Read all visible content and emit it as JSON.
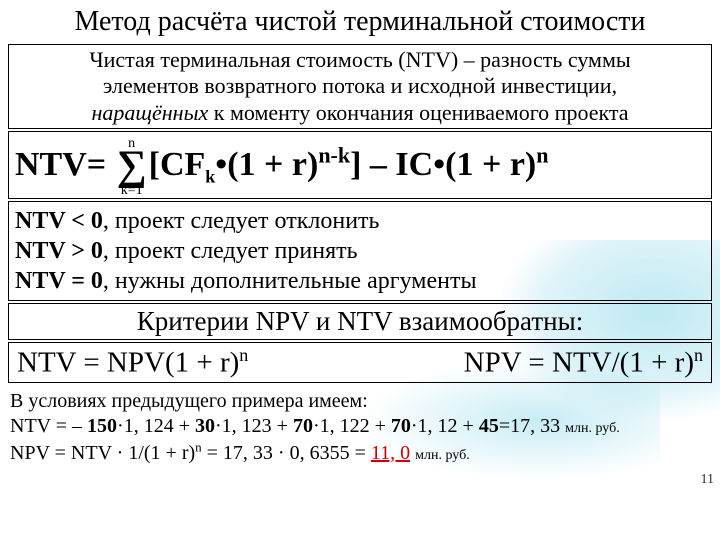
{
  "title": "Метод расчёта чистой терминальной стоимости",
  "definition": {
    "l1": "Чистая терминальная стоимость (NTV) – разность суммы",
    "l2": "элементов возвратного потока и исходной инвестиции,",
    "l3_em": "наращённых",
    "l3_rest": " к моменту окончания оцениваемого проекта"
  },
  "formula_main": {
    "lhs": "NTV= ",
    "sum_top": "n",
    "sum_bot": "k=1",
    "body1": "[CF",
    "sub_k": "k",
    "body2": "•(1 + r)",
    "exp1": "n-k",
    "body3": "] – IC•(1 + r)",
    "exp2": "n"
  },
  "rules": {
    "r1a": "NTV < 0",
    "r1b": ", проект следует отклонить",
    "r2a": "NTV > 0",
    "r2b": ", проект следует принять",
    "r3a": "NTV = 0",
    "r3b": ", нужны дополнительные аргументы"
  },
  "criteria": "Критерии NPV и NTV взаимообратны:",
  "pair": {
    "left_a": "NTV = NPV(1 + r)",
    "left_sup": "n",
    "right_a": "NPV = NTV/(1 + r)",
    "right_sup": "n"
  },
  "example": {
    "l1": "В условиях предыдущего примера имеем:",
    "l2a": "NTV = – ",
    "l2b": "150",
    "l2c": "·1, 124 + ",
    "l2d": "30",
    "l2e": "·1, 123 + ",
    "l2f": "70",
    "l2g": "·1, 122 + ",
    "l2h": "70",
    "l2i": "·1, 12 + ",
    "l2j": "45",
    "l2k": "=17, 33 ",
    "mln": "млн. руб.",
    "l3a": "NPV = NTV · 1/(1 + r)",
    "l3sup": "n",
    "l3b": " = 17, 33 · 0, 6355 = ",
    "l3red": "11, 0",
    "l3c": " "
  },
  "page_num": "11",
  "colors": {
    "red": "#cc0000",
    "border": "#000000",
    "bg_accent": "#7fd4e8"
  }
}
